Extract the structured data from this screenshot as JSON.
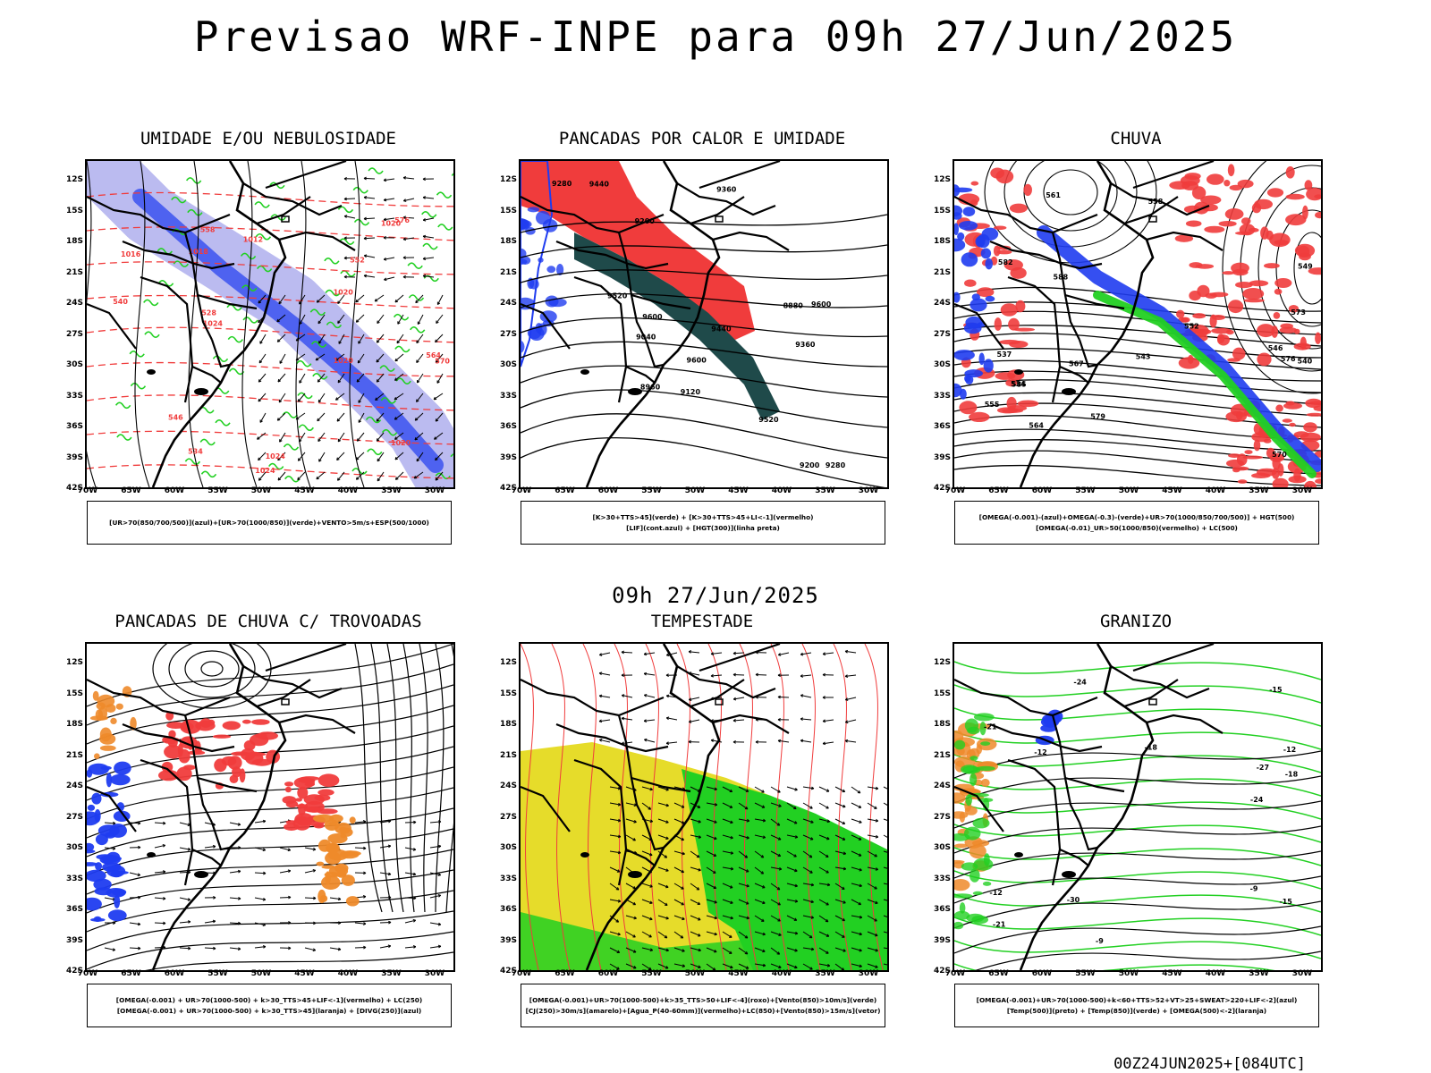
{
  "header": {
    "title": "Previsao WRF-INPE  para 09h 27/Jun/2025",
    "mid_date": "09h 27/Jun/2025",
    "footer_stamp": "00Z24JUN2025+[084UTC]"
  },
  "axes": {
    "lat_labels": [
      "12S",
      "15S",
      "18S",
      "21S",
      "24S",
      "27S",
      "30S",
      "33S",
      "36S",
      "39S",
      "42S"
    ],
    "lon_labels": [
      "70W",
      "65W",
      "60W",
      "55W",
      "50W",
      "45W",
      "40W",
      "35W",
      "30W"
    ]
  },
  "colors": {
    "blue_light": "#b4b4ee",
    "blue": "#1f3cf0",
    "green": "#22d022",
    "red": "#f03c3c",
    "dark_teal": "#1f4a4a",
    "yellow": "#e6dc2a",
    "orange": "#ee8a2a"
  },
  "panels": [
    {
      "title": "UMIDADE E/OU NEBULOSIDADE",
      "legend": [
        "[UR>70(850/700/500)](azul)+[UR>70(1000/850)](verde)+VENTO>5m/s+ESP(500/1000)"
      ],
      "contour_labels": [
        "1016",
        "1018",
        "1020",
        "1024",
        "1020",
        "1024",
        "1020",
        "1024",
        "576",
        "570",
        "564",
        "558",
        "552",
        "546",
        "540",
        "534",
        "528",
        "1012",
        "1020"
      ]
    },
    {
      "title": "PANCADAS POR CALOR E UMIDADE",
      "legend": [
        "[K>30+TTS>45](verde) + [K>30+TTS>45+LI<-1](vermelho)",
        "[LIF](cont.azul) + [HGT(300)](linha preta)"
      ],
      "contour_labels": [
        "9600",
        "9520",
        "9440",
        "9360",
        "9280",
        "9200",
        "9120",
        "9040",
        "8960",
        "8880",
        "9600",
        "9360",
        "9280",
        "9200",
        "9600",
        "9520",
        "9440"
      ]
    },
    {
      "title": "CHUVA",
      "legend": [
        "[OMEGA(-0.001)-(azul)+OMEGA(-0.3)-(verde)+UR>70(1000/850/700/500)] + HGT(500)",
        "[OMEGA(-0.01)_UR>50(1000/850)(vermelho) + LC(500)"
      ],
      "contour_labels": [
        "588",
        "585",
        "582",
        "579",
        "576",
        "573",
        "570",
        "567",
        "564",
        "561",
        "558",
        "555",
        "552",
        "549",
        "546",
        "543",
        "540",
        "537",
        "534"
      ]
    },
    {
      "title": "PANCADAS DE CHUVA C/ TROVOADAS",
      "legend": [
        "[OMEGA(-0.001) + UR>70(1000-500) + k>30_TTS>45+LIF<-1](vermelho) + LC(250)",
        "[OMEGA(-0.001) + UR>70(1000-500) + k>30_TTS>45](laranja) + [DIVG(250)](azul)"
      ],
      "contour_labels": []
    },
    {
      "title": "TEMPESTADE",
      "legend": [
        "[OMEGA(-0.001)+UR>70(1000-500)+k>35_TTS>50+LIF<-4](roxo)+[Vento(850)>10m/s](verde)",
        "[CJ(250)>30m/s](amarelo)+[Agua_P(40-60mm)](vermelho)+LC(850)+[Vento(850)>15m/s](vetor)"
      ],
      "contour_labels": []
    },
    {
      "title": "GRANIZO",
      "legend": [
        "[OMEGA(-0.001)+UR>70(1000-500)+k<60+TTS>52+VT>25+SWEAT>220+LIF<-2](azul)",
        "[Temp(500)](preto) + [Temp(850)](verde) + [OMEGA(500)<-2](laranja)"
      ],
      "contour_labels": [
        "-9",
        "-12",
        "-15",
        "-18",
        "-21",
        "-24",
        "-27",
        "-30",
        "-15",
        "-12",
        "-18",
        "-21",
        "-24",
        "-9",
        "-12"
      ]
    }
  ]
}
